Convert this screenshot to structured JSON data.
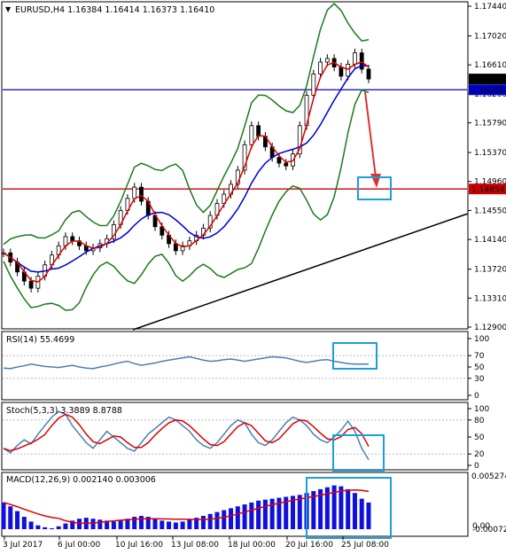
{
  "title": "EURUSD,H4  1.16384 1.16414 1.16373 1.16410",
  "price_axis": {
    "ticks": [
      "1.17440",
      "1.17020",
      "1.16610",
      "1.16200",
      "1.15790",
      "1.15370",
      "1.14960",
      "1.14550",
      "1.14140",
      "1.13720",
      "1.13310",
      "1.12900"
    ],
    "tick_values": [
      1.1744,
      1.1702,
      1.1661,
      1.162,
      1.1579,
      1.1537,
      1.1496,
      1.1455,
      1.1414,
      1.1372,
      1.1331,
      1.129
    ],
    "current_label": "1.16410",
    "hline_blue_label": "1.16258",
    "hline_red_label": "1.14854",
    "current_value": 1.1641,
    "hline_blue_value": 1.16258,
    "hline_red_value": 1.14854,
    "colors": {
      "current": "#000000",
      "blue": "#0000cc",
      "red": "#cc0000"
    }
  },
  "rsi": {
    "label": "RSI(14) 55.4699",
    "ticks": [
      "100",
      "70",
      "50",
      "30",
      "0"
    ],
    "tick_values": [
      100,
      70,
      50,
      30,
      0
    ]
  },
  "stoch": {
    "label": "Stoch(5,3,3) 3.3889 8.8788",
    "ticks": [
      "100",
      "80",
      "50",
      "20",
      "0"
    ],
    "tick_values": [
      100,
      80,
      50,
      20,
      0
    ]
  },
  "macd": {
    "label": "MACD(12,26,9) 0.002140 0.003006",
    "ticks": [
      "0.005274",
      "0.00",
      "-0.000729"
    ]
  },
  "time_axis": {
    "labels": [
      "3 Jul 2017",
      "6 Jul 00:00",
      "10 Jul 16:00",
      "13 Jul 08:00",
      "18 Jul 00:00",
      "20 Jul 16:00",
      "25 Jul 08:00"
    ]
  },
  "chart_data": {
    "type": "line",
    "instrument": "EURUSD",
    "timeframe": "H4",
    "ohlc": {
      "open": 1.16384,
      "high": 1.16414,
      "low": 1.16373,
      "close": 1.1641
    },
    "close_series": [
      1.1395,
      1.1382,
      1.1368,
      1.1355,
      1.1345,
      1.1362,
      1.1378,
      1.1392,
      1.1405,
      1.1418,
      1.1412,
      1.1405,
      1.1398,
      1.1402,
      1.1408,
      1.1415,
      1.1435,
      1.1455,
      1.1472,
      1.1488,
      1.1468,
      1.1448,
      1.1432,
      1.142,
      1.1408,
      1.1398,
      1.1405,
      1.1412,
      1.142,
      1.143,
      1.1448,
      1.1465,
      1.1478,
      1.1492,
      1.1512,
      1.1548,
      1.1575,
      1.156,
      1.1545,
      1.153,
      1.1522,
      1.1518,
      1.1535,
      1.1575,
      1.1618,
      1.1648,
      1.1665,
      1.167,
      1.1658,
      1.1645,
      1.1662,
      1.1678,
      1.1655,
      1.1641
    ],
    "rsi_series": [
      48,
      47,
      50,
      52,
      55,
      53,
      51,
      50,
      49,
      51,
      53,
      50,
      48,
      47,
      50,
      52,
      55,
      58,
      60,
      56,
      53,
      55,
      57,
      60,
      62,
      64,
      66,
      68,
      65,
      62,
      60,
      61,
      63,
      64,
      62,
      60,
      62,
      64,
      66,
      68,
      67,
      66,
      63,
      60,
      58,
      60,
      62,
      63,
      60,
      58,
      56,
      55,
      55,
      55
    ],
    "stoch_series": [
      30,
      22,
      35,
      45,
      38,
      55,
      70,
      85,
      95,
      90,
      70,
      55,
      40,
      30,
      45,
      60,
      50,
      40,
      30,
      25,
      40,
      55,
      65,
      75,
      85,
      80,
      70,
      60,
      45,
      35,
      30,
      40,
      55,
      70,
      80,
      75,
      55,
      40,
      35,
      45,
      60,
      75,
      85,
      80,
      70,
      55,
      45,
      40,
      50,
      62,
      78,
      60,
      30,
      10
    ],
    "macd_hist": [
      0.0028,
      0.0024,
      0.0019,
      0.0013,
      0.0008,
      0.0004,
      0.0002,
      0.0001,
      0.0003,
      0.0006,
      0.0009,
      0.0011,
      0.0012,
      0.0011,
      0.001,
      0.0009,
      0.0008,
      0.0009,
      0.0011,
      0.0013,
      0.0014,
      0.0013,
      0.0011,
      0.0009,
      0.0008,
      0.0007,
      0.0008,
      0.001,
      0.0012,
      0.0014,
      0.0016,
      0.0018,
      0.002,
      0.0022,
      0.0024,
      0.0026,
      0.0028,
      0.003,
      0.0031,
      0.0032,
      0.0033,
      0.0034,
      0.0035,
      0.0036,
      0.0038,
      0.004,
      0.0042,
      0.0044,
      0.0046,
      0.0045,
      0.0042,
      0.0038,
      0.0032,
      0.0028
    ]
  }
}
